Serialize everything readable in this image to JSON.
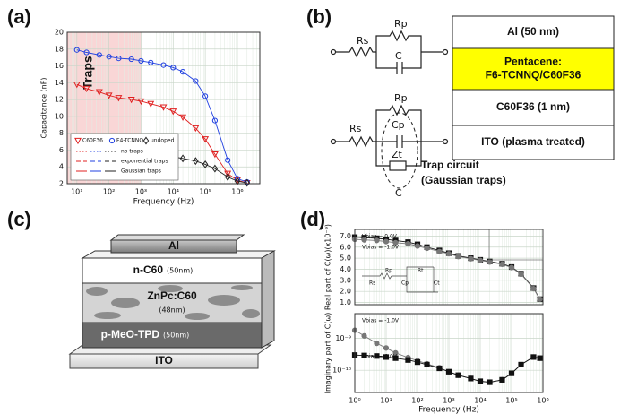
{
  "panel_labels": [
    "(a)",
    "(b)",
    "(c)",
    "(d)"
  ],
  "chart_data": [
    {
      "type": "line",
      "xlabel": "Frequency (Hz)",
      "ylabel": "Capacitance (nF)",
      "xlog": true,
      "ylog": false,
      "xlim": [
        5,
        5000000
      ],
      "ylim": [
        2,
        20
      ],
      "xticks": [
        {
          "value": 10,
          "label": "10¹"
        },
        {
          "value": 100,
          "label": "10²"
        },
        {
          "value": 1000,
          "label": "10³"
        },
        {
          "value": 10000,
          "label": "10⁴"
        },
        {
          "value": 100000,
          "label": "10⁵"
        },
        {
          "value": 1000000,
          "label": "10⁶"
        }
      ],
      "yticks": [
        2,
        4,
        6,
        8,
        10,
        12,
        14,
        16,
        18,
        20
      ],
      "grid": true,
      "legend": "lower left",
      "annotation": "Traps",
      "trap_region_end": 1000,
      "x": [
        10,
        20,
        50,
        100,
        200,
        500,
        1000,
        2000,
        5000,
        10000,
        20000,
        50000,
        100000,
        200000,
        500000,
        1000000,
        2000000
      ],
      "series": [
        {
          "name": "C60F36",
          "color": "#e02020",
          "marker": "triangle",
          "filled": false,
          "values": [
            13.8,
            13.3,
            12.9,
            12.5,
            12.2,
            12.0,
            11.8,
            11.5,
            11.1,
            10.6,
            9.9,
            8.6,
            7.3,
            5.5,
            3.2,
            2.4,
            2.1
          ]
        },
        {
          "name": "F4-TCNNQ",
          "color": "#2040e0",
          "marker": "circle",
          "filled": false,
          "values": [
            17.9,
            17.6,
            17.3,
            17.1,
            16.9,
            16.8,
            16.6,
            16.4,
            16.1,
            15.8,
            15.3,
            14.2,
            12.4,
            9.5,
            4.8,
            2.6,
            2.2
          ]
        },
        {
          "name": "undoped",
          "color": "#222222",
          "marker": "diamond",
          "filled": false,
          "values": [
            7.1,
            6.8,
            6.5,
            6.3,
            6.1,
            5.9,
            5.8,
            5.6,
            5.4,
            5.2,
            5.0,
            4.7,
            4.3,
            3.8,
            2.8,
            2.3,
            2.1
          ]
        }
      ],
      "fit_legend": [
        {
          "name": "no traps",
          "style": "dotted"
        },
        {
          "name": "exponential traps",
          "style": "dashed"
        },
        {
          "name": "Gaussian traps",
          "style": "solid"
        }
      ]
    },
    {
      "type": "line",
      "ylabel": "Real part of C(ω)(x10⁻⁹)",
      "xlog": true,
      "ylog": false,
      "xlim": [
        1,
        1000000
      ],
      "ylim": [
        0.8,
        7.6
      ],
      "yticks": [
        {
          "value": 1,
          "label": "1.0"
        },
        {
          "value": 2,
          "label": "2.0"
        },
        {
          "value": 3,
          "label": "3.0"
        },
        {
          "value": 4,
          "label": "4.0"
        },
        {
          "value": 5,
          "label": "5.0"
        },
        {
          "value": 6,
          "label": "6.0"
        },
        {
          "value": 7,
          "label": "7.0"
        }
      ],
      "grid": true,
      "legend": "upper left",
      "x": [
        1,
        2,
        5,
        10,
        20,
        50,
        100,
        200,
        500,
        1000,
        2000,
        5000,
        10000,
        20000,
        50000,
        100000,
        200000,
        500000,
        800000
      ],
      "series": [
        {
          "name": "Vbias = 0.0V",
          "color": "#111111",
          "marker": "square",
          "filled": true,
          "values": [
            6.9,
            6.85,
            6.8,
            6.7,
            6.6,
            6.45,
            6.25,
            6.0,
            5.7,
            5.45,
            5.2,
            5.0,
            4.85,
            4.7,
            4.5,
            4.2,
            3.6,
            2.3,
            1.3
          ]
        },
        {
          "name": "Vbias = -1.0V",
          "color": "#777777",
          "marker": "circle",
          "filled": true,
          "values": [
            6.7,
            6.65,
            6.6,
            6.5,
            6.4,
            6.3,
            6.1,
            5.9,
            5.6,
            5.4,
            5.15,
            4.95,
            4.8,
            4.65,
            4.45,
            4.15,
            3.55,
            2.25,
            1.3
          ]
        }
      ],
      "inset_circuit": [
        "Rs",
        "Rp",
        "Cp",
        "Rt",
        "Ct"
      ]
    },
    {
      "type": "line",
      "xlabel": "Frequency (Hz)",
      "ylabel": "Imaginary part of C(ω)",
      "xlog": true,
      "ylog": true,
      "xlim": [
        1,
        1000000
      ],
      "ylim": [
        2e-11,
        6e-09
      ],
      "xticks": [
        {
          "value": 1,
          "label": "10⁰"
        },
        {
          "value": 10,
          "label": "10¹"
        },
        {
          "value": 100,
          "label": "10²"
        },
        {
          "value": 1000,
          "label": "10³"
        },
        {
          "value": 10000,
          "label": "10⁴"
        },
        {
          "value": 100000,
          "label": "10⁵"
        },
        {
          "value": 1000000,
          "label": "10⁶"
        }
      ],
      "yticks": [
        {
          "value": 1e-10,
          "label": "10⁻¹⁰"
        },
        {
          "value": 1e-09,
          "label": "10⁻⁹"
        }
      ],
      "grid": true,
      "legend": "upper left",
      "x": [
        1,
        2,
        5,
        10,
        20,
        50,
        100,
        200,
        500,
        1000,
        2000,
        5000,
        10000,
        20000,
        50000,
        100000,
        200000,
        500000,
        800000
      ],
      "series": [
        {
          "name": "Vbias = -1.0V",
          "color": "#777777",
          "marker": "circle",
          "filled": true,
          "values": [
            1.8e-09,
            1.2e-09,
            7e-10,
            5e-10,
            3.5e-10,
            2.5e-10,
            2e-10,
            1.6e-10,
            1.2e-10,
            9e-11,
            7e-11,
            5.5e-11,
            4.5e-11,
            4.2e-11,
            5e-11,
            8e-11,
            1.5e-10,
            2.6e-10,
            2.4e-10
          ]
        },
        {
          "name": "Vbias = 0.0V",
          "color": "#111111",
          "marker": "square",
          "filled": true,
          "values": [
            3e-10,
            2.9e-10,
            2.8e-10,
            2.6e-10,
            2.4e-10,
            2.1e-10,
            1.8e-10,
            1.5e-10,
            1.15e-10,
            9e-11,
            7e-11,
            5.5e-11,
            4.5e-11,
            4.2e-11,
            5e-11,
            8e-11,
            1.5e-10,
            2.6e-10,
            2.4e-10
          ]
        }
      ]
    }
  ],
  "circuit_b": {
    "top": [
      "Rs",
      "Rp",
      "C"
    ],
    "bottom": [
      "Rs",
      "Rp",
      "Cp",
      "Zt",
      "C"
    ],
    "trap_label": [
      "Trap circuit",
      "(Gaussian traps)"
    ]
  },
  "layers_b": [
    {
      "lines": [
        "Al (50 nm)"
      ],
      "color": "#ffffff"
    },
    {
      "lines": [
        "Pentacene:",
        "F6-TCNNQ/C60F36"
      ],
      "color": "#ffff00"
    },
    {
      "lines": [
        "C60F36 (1 nm)"
      ],
      "color": "#ffffff"
    },
    {
      "lines": [
        "ITO (plasma treated)"
      ],
      "color": "#ffffff"
    }
  ],
  "layers_c": [
    {
      "name": "Al"
    },
    {
      "name": "n-C60",
      "thickness": "(50nm)"
    },
    {
      "name": "ZnPc:C60",
      "thickness": "(48nm)"
    },
    {
      "name": "p-MeO-TPD",
      "thickness": "(50nm)"
    },
    {
      "name": "ITO"
    }
  ]
}
